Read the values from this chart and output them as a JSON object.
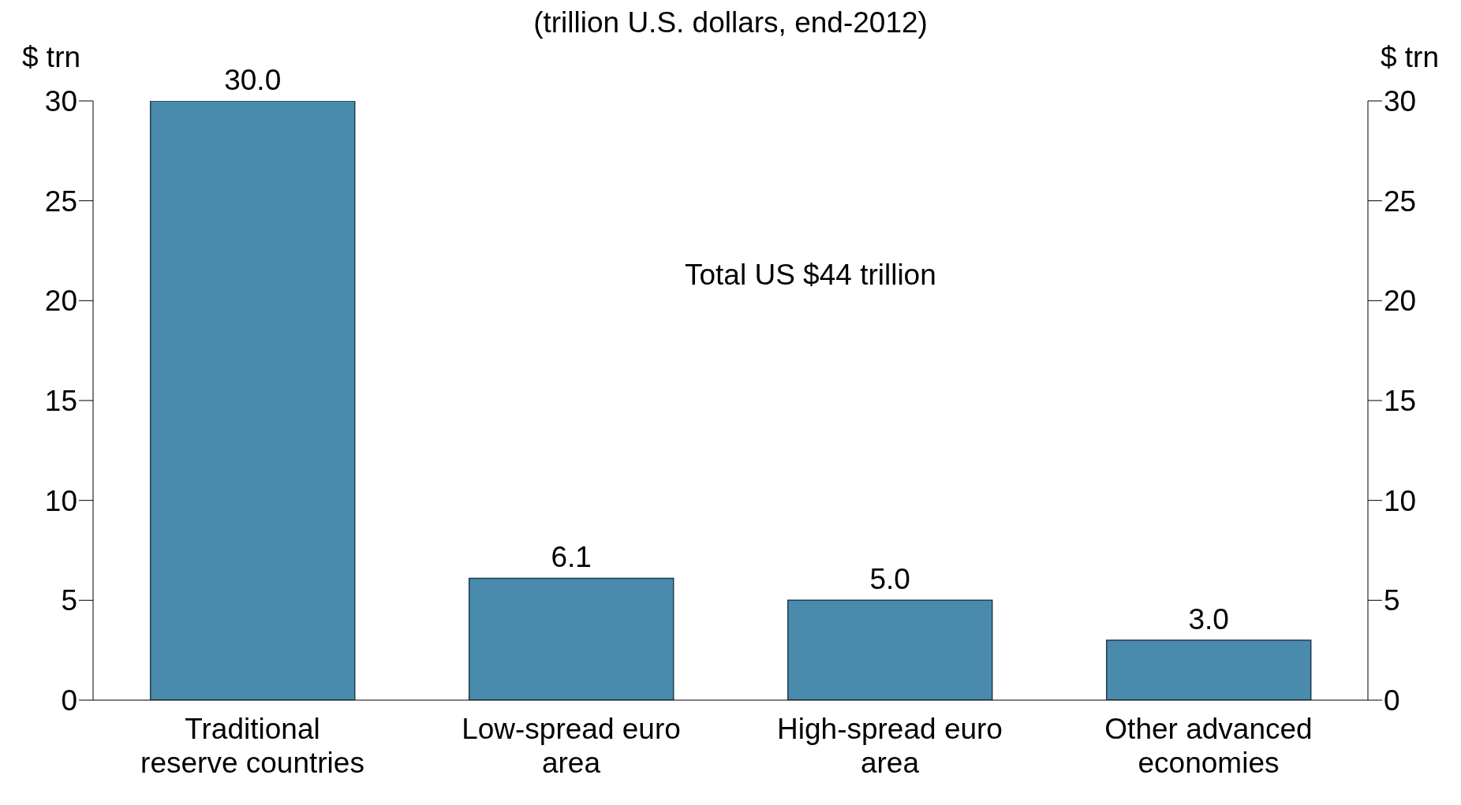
{
  "chart_data": {
    "type": "bar",
    "subtitle": "(trillion U.S. dollars, end-2012)",
    "ylabel": "$ trn",
    "y2label": "$ trn",
    "categories": [
      "Traditional reserve countries",
      "Low-spread euro area",
      "High-spread euro area",
      "Other advanced economies"
    ],
    "values": [
      30.0,
      6.1,
      5.0,
      3.0
    ],
    "color": "#4a8aad",
    "ylim": [
      0,
      30
    ],
    "yticks": [
      0,
      5,
      10,
      15,
      20,
      25,
      30
    ],
    "y2lim": [
      0,
      30
    ],
    "y2ticks": [
      0,
      5,
      10,
      15,
      20,
      25,
      30
    ],
    "value_labels": [
      "30.0",
      "6.1",
      "5.0",
      "3.0"
    ],
    "annotations": [
      "Total US $44 trillion"
    ]
  }
}
